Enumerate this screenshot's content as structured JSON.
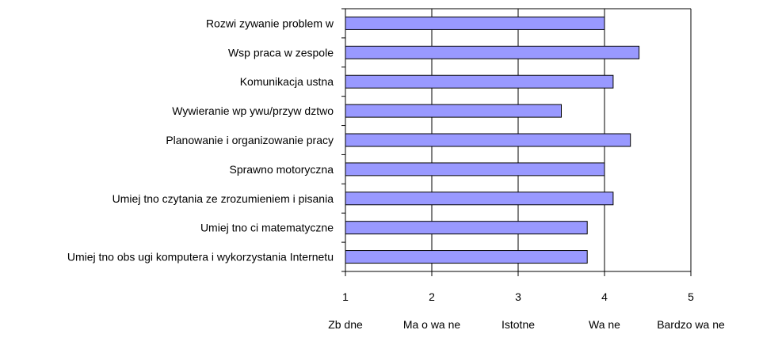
{
  "chart_data": {
    "type": "bar",
    "orientation": "horizontal",
    "categories": [
      "Rozwi zywanie problem w",
      "Wsp praca w zespole",
      "Komunikacja ustna",
      "Wywieranie wp ywu/przyw dztwo",
      "Planowanie i organizowanie pracy",
      "Sprawno motoryczna",
      "Umiej tno czytania ze zrozumieniem i pisania",
      "Umiej tno ci matematyczne",
      "Umiej tno obs ugi komputera i wykorzystania Internetu"
    ],
    "values": [
      4.0,
      4.4,
      4.1,
      3.5,
      4.3,
      4.0,
      4.1,
      3.8,
      3.8
    ],
    "xlim": [
      1,
      5
    ],
    "ticks": [
      1,
      2,
      3,
      4,
      5
    ],
    "tick_labels": [
      "1",
      "2",
      "3",
      "4",
      "5"
    ],
    "scale_labels": [
      "Zb dne",
      "Ma o wa ne",
      "Istotne",
      "Wa ne",
      "Bardzo wa ne"
    ],
    "grid": true,
    "colors": {
      "bar_fill": "#9999ff",
      "bar_stroke": "#000000",
      "grid": "#000000"
    }
  }
}
